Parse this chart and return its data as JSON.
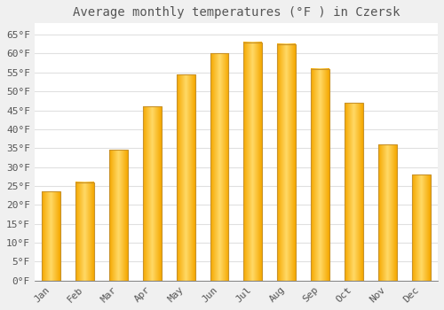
{
  "title": "Average monthly temperatures (°F ) in Czersk",
  "months": [
    "Jan",
    "Feb",
    "Mar",
    "Apr",
    "May",
    "Jun",
    "Jul",
    "Aug",
    "Sep",
    "Oct",
    "Nov",
    "Dec"
  ],
  "values": [
    23.5,
    26,
    34.5,
    46,
    54.5,
    60,
    63,
    62.5,
    56,
    47,
    36,
    28
  ],
  "bar_color_bottom": "#F5A800",
  "bar_color_top": "#FFD966",
  "bar_color_mid": "#FFC84A",
  "bar_edge_color": "#C8922A",
  "background_color": "#F0F0F0",
  "plot_bg_color": "#FFFFFF",
  "grid_color": "#E0E0E0",
  "text_color": "#555555",
  "ylim": [
    0,
    68
  ],
  "yticks": [
    0,
    5,
    10,
    15,
    20,
    25,
    30,
    35,
    40,
    45,
    50,
    55,
    60,
    65
  ],
  "title_fontsize": 10,
  "tick_fontsize": 8,
  "font_family": "monospace",
  "bar_width": 0.55
}
